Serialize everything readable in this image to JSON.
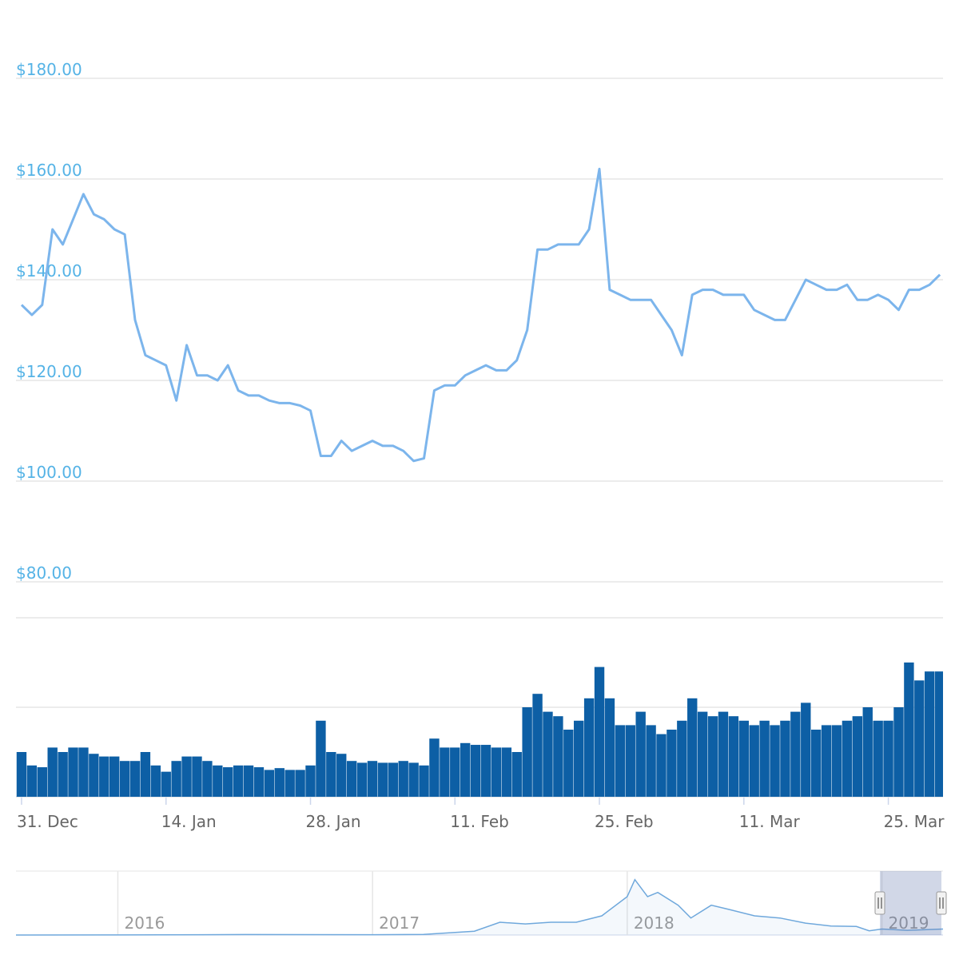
{
  "chart_data": [
    {
      "type": "line",
      "color": "#7cb5ec",
      "x": [
        0,
        1,
        2,
        3,
        4,
        5,
        6,
        7,
        8,
        9,
        10,
        11,
        12,
        13,
        14,
        15,
        16,
        17,
        18,
        19,
        20,
        21,
        22,
        23,
        24,
        25,
        26,
        27,
        28,
        29,
        30,
        31,
        32,
        33,
        34,
        35,
        36,
        37,
        38,
        39,
        40,
        41,
        42,
        43,
        44,
        45,
        46,
        47,
        48,
        49,
        50,
        51,
        52,
        53,
        54,
        55,
        56,
        57,
        58,
        59,
        60,
        61,
        62,
        63,
        64,
        65,
        66,
        67,
        68,
        69,
        70,
        71,
        72,
        73,
        74,
        75,
        76,
        77,
        78,
        79,
        80,
        81,
        82,
        83,
        84,
        85,
        86,
        87,
        88,
        89
      ],
      "values": [
        135,
        133,
        135,
        150,
        147,
        152,
        157,
        153,
        152,
        150,
        149,
        132,
        125,
        124,
        123,
        116,
        127,
        121,
        121,
        120,
        123,
        118,
        117,
        117,
        116,
        115.5,
        115.5,
        115,
        114,
        105,
        105,
        108,
        106,
        107,
        108,
        107,
        107,
        106,
        104,
        104.5,
        118,
        119,
        119,
        121,
        122,
        123,
        122,
        122,
        124,
        130,
        146,
        146,
        147,
        147,
        147,
        150,
        162,
        138,
        137,
        136,
        136,
        136,
        133,
        130,
        125,
        137,
        138,
        138,
        137,
        137,
        137,
        134,
        133,
        132,
        132,
        136,
        140,
        139,
        138,
        138,
        139,
        136,
        136,
        137,
        136,
        134,
        138,
        138,
        139,
        141
      ],
      "xlim": [
        -0.54,
        89.3
      ],
      "xticks": [
        {
          "value": 0,
          "label": "31. Dec"
        },
        {
          "value": 14,
          "label": "14. Jan"
        },
        {
          "value": 28,
          "label": "28. Jan"
        },
        {
          "value": 42,
          "label": "11. Feb"
        },
        {
          "value": 56,
          "label": "25. Feb"
        },
        {
          "value": 70,
          "label": "11. Mar"
        },
        {
          "value": 84,
          "label": "25. Mar"
        }
      ],
      "ylim": [
        80,
        180
      ],
      "yticks": [
        {
          "value": 80,
          "label": "$80.00"
        },
        {
          "value": 100,
          "label": "$100.00"
        },
        {
          "value": 120,
          "label": "$120.00"
        },
        {
          "value": 140,
          "label": "$140.00"
        },
        {
          "value": 160,
          "label": "$160.00"
        },
        {
          "value": 180,
          "label": "$180.00"
        }
      ],
      "grid": true
    },
    {
      "type": "bar",
      "color": "#0d5fa5",
      "x": [
        0,
        1,
        2,
        3,
        4,
        5,
        6,
        7,
        8,
        9,
        10,
        11,
        12,
        13,
        14,
        15,
        16,
        17,
        18,
        19,
        20,
        21,
        22,
        23,
        24,
        25,
        26,
        27,
        28,
        29,
        30,
        31,
        32,
        33,
        34,
        35,
        36,
        37,
        38,
        39,
        40,
        41,
        42,
        43,
        44,
        45,
        46,
        47,
        48,
        49,
        50,
        51,
        52,
        53,
        54,
        55,
        56,
        57,
        58,
        59,
        60,
        61,
        62,
        63,
        64,
        65,
        66,
        67,
        68,
        69,
        70,
        71,
        72,
        73,
        74,
        75,
        76,
        77,
        78,
        79,
        80,
        81,
        82,
        83,
        84,
        85,
        86,
        87,
        88,
        89
      ],
      "values": [
        0.5,
        0.35,
        0.33,
        0.55,
        0.5,
        0.55,
        0.55,
        0.48,
        0.45,
        0.45,
        0.4,
        0.4,
        0.5,
        0.35,
        0.28,
        0.4,
        0.45,
        0.45,
        0.4,
        0.35,
        0.33,
        0.35,
        0.35,
        0.33,
        0.3,
        0.32,
        0.3,
        0.3,
        0.35,
        0.85,
        0.5,
        0.48,
        0.4,
        0.38,
        0.4,
        0.38,
        0.38,
        0.4,
        0.38,
        0.35,
        0.65,
        0.55,
        0.55,
        0.6,
        0.58,
        0.58,
        0.55,
        0.55,
        0.5,
        1.0,
        1.15,
        0.95,
        0.9,
        0.75,
        0.85,
        1.1,
        1.45,
        1.1,
        0.8,
        0.8,
        0.95,
        0.8,
        0.7,
        0.75,
        0.85,
        1.1,
        0.95,
        0.9,
        0.95,
        0.9,
        0.85,
        0.8,
        0.85,
        0.8,
        0.85,
        0.95,
        1.05,
        0.75,
        0.8,
        0.8,
        0.85,
        0.9,
        1.0,
        0.85,
        0.85,
        1.0,
        1.5,
        1.3,
        1.4,
        1.4
      ],
      "xlim": [
        -0.54,
        89.3
      ],
      "ylim": [
        0,
        2
      ],
      "yticks": [
        0,
        1,
        2
      ],
      "grid": true
    },
    {
      "type": "area",
      "color": "#6fa8dc",
      "x": [
        2015.6,
        2016.0,
        2016.5,
        2017.0,
        2017.2,
        2017.4,
        2017.5,
        2017.6,
        2017.7,
        2017.8,
        2017.9,
        2018.0,
        2018.03,
        2018.08,
        2018.12,
        2018.2,
        2018.25,
        2018.33,
        2018.4,
        2018.5,
        2018.6,
        2018.7,
        2018.8,
        2018.9,
        2018.95,
        2019.0,
        2019.1,
        2019.24
      ],
      "values": [
        0.5,
        1,
        12,
        8,
        15,
        90,
        300,
        260,
        300,
        300,
        450,
        900,
        1300,
        900,
        1000,
        700,
        400,
        700,
        600,
        450,
        400,
        280,
        210,
        200,
        100,
        140,
        110,
        140
      ],
      "xlim": [
        2015.6,
        2019.24
      ],
      "xticks": [
        2016,
        2017,
        2018,
        2019
      ],
      "ylim": [
        0,
        1500
      ]
    }
  ]
}
